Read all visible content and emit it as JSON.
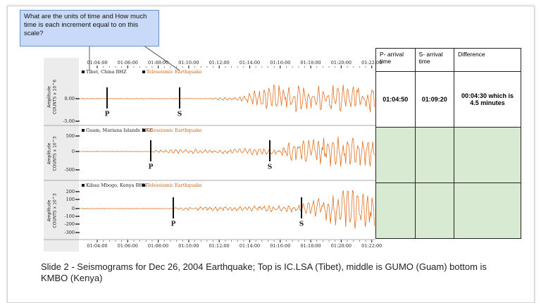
{
  "callout": {
    "text": "What are the units of time and How much time is each increment equal to on this scale?"
  },
  "seismogram": {
    "times": [
      "01:04:00",
      "01:06:00",
      "01:08:00",
      "01:10:00",
      "01:12:00",
      "01:14:00",
      "01:16:00",
      "01:18:00",
      "01:20:00",
      "01:22:00"
    ],
    "panels": [
      {
        "station": "Tibet, China BHZ",
        "event": "Teleseismic Earthquake",
        "axis_label": [
          "Amplitude",
          "COUNTS x 10^6"
        ],
        "ticks": [
          "0.00",
          "-5.00"
        ],
        "phases": [
          "P",
          "S"
        ]
      },
      {
        "station": "Guam, Mariana Islands BHZ",
        "event": "Teleseismic Earthquake",
        "axis_label": [
          "Amplitude",
          "COUNTS x 10^3"
        ],
        "ticks": [
          "500",
          "0",
          "-500"
        ],
        "phases": [
          "P",
          "S"
        ]
      },
      {
        "station": "Kibau Mbogo, Kenya BHN",
        "event": "Teleseismic Earthquake",
        "axis_label": [
          "Amplitude",
          "COUNTS x 10^3"
        ],
        "ticks": [
          "200",
          "100",
          "0",
          "-100",
          "-200",
          "-300"
        ],
        "phases": [
          "P",
          "S"
        ]
      }
    ]
  },
  "table": {
    "header": [
      "P- arrival time",
      "S- arrival time",
      "Difference"
    ],
    "rows": [
      [
        "01:04:50",
        "01:09:20",
        "00:04:30 which is 4.5 minutes"
      ]
    ]
  },
  "caption": "Slide 2 - Seismograms for Dec 26, 2004 Earthquake; Top is IC.LSA (Tibet), middle is GUMO (Guam) bottom is KMBO (Kenya)"
}
